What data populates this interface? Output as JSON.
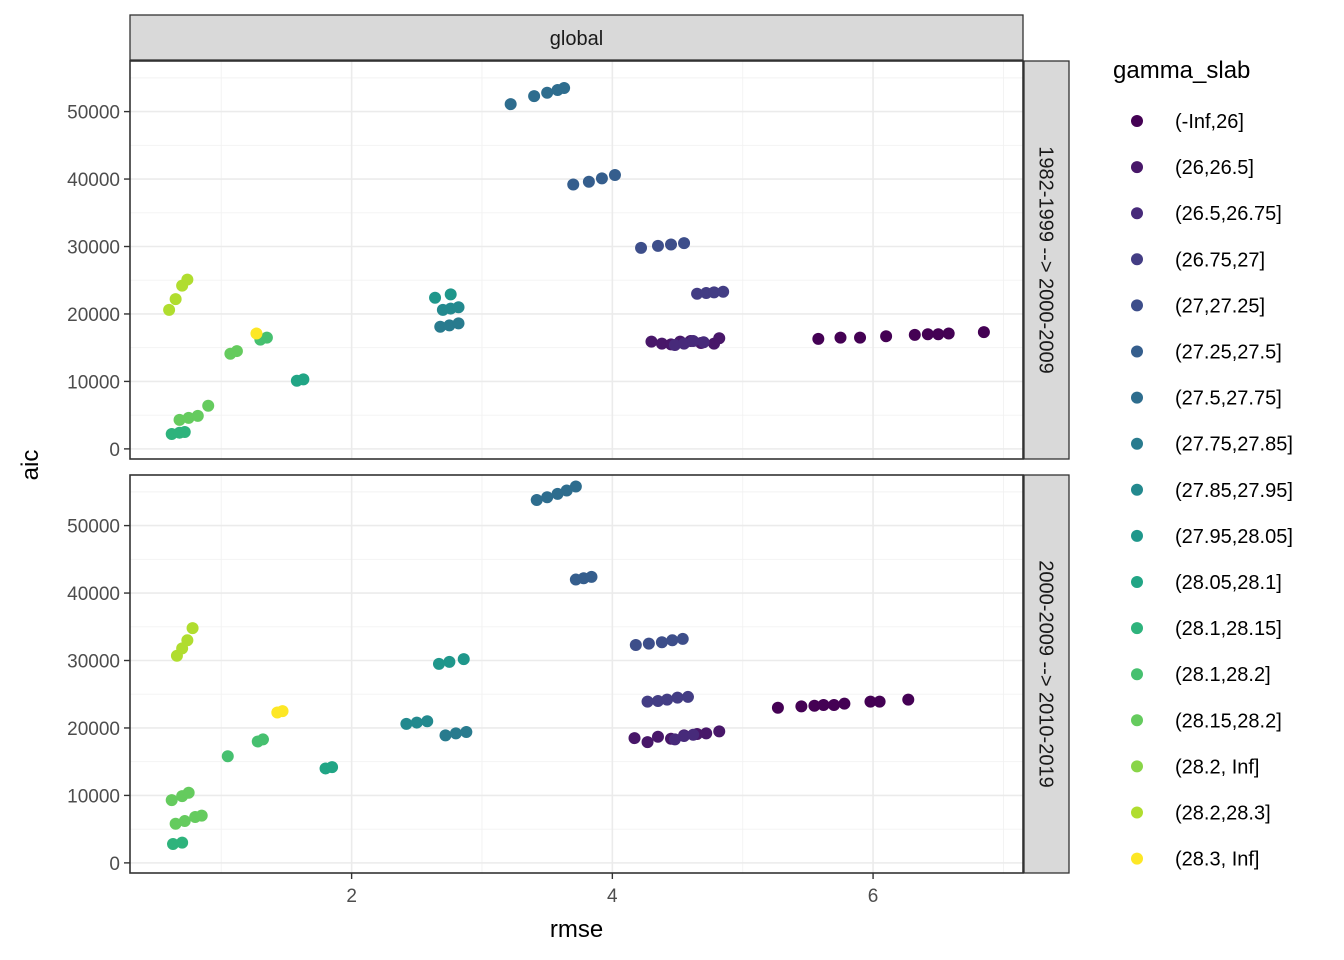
{
  "chart_data": {
    "type": "scatter",
    "facet_column_strip": "global",
    "xlabel": "rmse",
    "ylabel": "aic",
    "xlim": [
      0.3,
      7.15
    ],
    "ylim": [
      -1500,
      57500
    ],
    "x_ticks": [
      2,
      4,
      6
    ],
    "y_ticks": [
      0,
      10000,
      20000,
      30000,
      40000,
      50000
    ],
    "grid": true,
    "legend": {
      "title": "gamma_slab",
      "position": "right",
      "entries": [
        {
          "label": "(-Inf,26]",
          "color": "#440154"
        },
        {
          "label": "(26,26.5]",
          "color": "#481769"
        },
        {
          "label": "(26.5,26.75]",
          "color": "#472A7A"
        },
        {
          "label": "(26.75,27]",
          "color": "#433D84"
        },
        {
          "label": "(27,27.25]",
          "color": "#3D4E8A"
        },
        {
          "label": "(27.25,27.5]",
          "color": "#355E8D"
        },
        {
          "label": "(27.5,27.75]",
          "color": "#2E6D8E"
        },
        {
          "label": "(27.75,27.85]",
          "color": "#297B8E"
        },
        {
          "label": "(27.85,27.95]",
          "color": "#23898E"
        },
        {
          "label": "(27.95,28.05]",
          "color": "#1F978B"
        },
        {
          "label": "(28.05,28.1]",
          "color": "#21A585"
        },
        {
          "label": "(28.1,28.15]",
          "color": "#2EB37C"
        },
        {
          "label": "(28.1,28.2]",
          "color": "#46C06F"
        },
        {
          "label": "(28.15,28.2]",
          "color": "#65CB5E"
        },
        {
          "label": "(28.2, Inf]",
          "color": "#89D548"
        },
        {
          "label": "(28.2,28.3]",
          "color": "#B0DD2F"
        },
        {
          "label": "(28.3, Inf]",
          "color": "#FDE725"
        }
      ]
    },
    "panels": [
      {
        "strip": "1982-1999 --> 2000-2009",
        "series": [
          {
            "group": "(-Inf,26]",
            "x": [
              5.58,
              5.75,
              5.9,
              6.1,
              6.32,
              6.42,
              6.5,
              6.58,
              6.85
            ],
            "y": [
              16300,
              16500,
              16500,
              16700,
              16900,
              17000,
              17000,
              17100,
              17300
            ]
          },
          {
            "group": "(26,26.5]",
            "x": [
              4.3,
              4.38,
              4.45,
              4.52,
              4.6,
              4.68,
              4.78,
              4.82
            ],
            "y": [
              15900,
              15600,
              15500,
              15900,
              16000,
              15700,
              15600,
              16400
            ]
          },
          {
            "group": "(26.5,26.75]",
            "x": [
              4.48,
              4.55,
              4.62,
              4.7
            ],
            "y": [
              15400,
              15600,
              16000,
              15800
            ]
          },
          {
            "group": "(26.75,27]",
            "x": [
              4.65,
              4.72,
              4.78,
              4.85
            ],
            "y": [
              23000,
              23100,
              23200,
              23300
            ]
          },
          {
            "group": "(27,27.25]",
            "x": [
              4.22,
              4.35,
              4.45,
              4.55
            ],
            "y": [
              29800,
              30100,
              30300,
              30500
            ]
          },
          {
            "group": "(27.25,27.5]",
            "x": [
              3.7,
              3.82,
              3.92,
              4.02
            ],
            "y": [
              39200,
              39600,
              40100,
              40600
            ]
          },
          {
            "group": "(27.5,27.75]",
            "x": [
              3.22,
              3.4,
              3.5,
              3.58,
              3.63
            ],
            "y": [
              51100,
              52300,
              52800,
              53200,
              53500
            ]
          },
          {
            "group": "(27.75,27.85]",
            "x": [
              2.68,
              2.75,
              2.82
            ],
            "y": [
              18100,
              18300,
              18600
            ]
          },
          {
            "group": "(27.85,27.95]",
            "x": [
              2.7,
              2.76,
              2.82
            ],
            "y": [
              20600,
              20800,
              21000
            ]
          },
          {
            "group": "(27.95,28.05]",
            "x": [
              2.64,
              2.76
            ],
            "y": [
              22400,
              22900
            ]
          },
          {
            "group": "(28.05,28.1]",
            "x": [
              1.58,
              1.63
            ],
            "y": [
              10100,
              10300
            ]
          },
          {
            "group": "(28.1,28.15]",
            "x": [
              0.62,
              0.68,
              0.72
            ],
            "y": [
              2200,
              2400,
              2500
            ]
          },
          {
            "group": "(28.1,28.2]",
            "x": [
              1.3,
              1.35
            ],
            "y": [
              16200,
              16500
            ]
          },
          {
            "group": "(28.15,28.2]",
            "x": [
              0.68,
              0.75,
              0.82,
              0.9,
              1.07,
              1.12
            ],
            "y": [
              4300,
              4600,
              4900,
              6400,
              14100,
              14500
            ]
          },
          {
            "group": "(28.2,28.3]",
            "x": [
              0.6,
              0.65,
              0.7,
              0.74
            ],
            "y": [
              20600,
              22200,
              24200,
              25100
            ]
          },
          {
            "group": "(28.3, Inf]",
            "x": [
              1.27
            ],
            "y": [
              17100
            ]
          }
        ]
      },
      {
        "strip": "2000-2009 --> 2010-2019",
        "series": [
          {
            "group": "(-Inf,26]",
            "x": [
              5.27,
              5.45,
              5.55,
              5.62,
              5.7,
              5.78,
              5.98,
              6.05,
              6.27
            ],
            "y": [
              23000,
              23200,
              23300,
              23400,
              23400,
              23600,
              23900,
              23900,
              24200
            ]
          },
          {
            "group": "(26,26.5]",
            "x": [
              4.17,
              4.27,
              4.35,
              4.45,
              4.55,
              4.65,
              4.72,
              4.82
            ],
            "y": [
              18500,
              17900,
              18700,
              18400,
              18900,
              19100,
              19200,
              19500
            ]
          },
          {
            "group": "(26.5,26.75]",
            "x": [
              4.48,
              4.55,
              4.62
            ],
            "y": [
              18300,
              18800,
              19000
            ]
          },
          {
            "group": "(26.75,27]",
            "x": [
              4.27,
              4.35,
              4.42,
              4.5,
              4.58
            ],
            "y": [
              23900,
              24000,
              24200,
              24500,
              24600
            ]
          },
          {
            "group": "(27,27.25]",
            "x": [
              4.18,
              4.28,
              4.38,
              4.46,
              4.54
            ],
            "y": [
              32300,
              32500,
              32700,
              33000,
              33200
            ]
          },
          {
            "group": "(27.25,27.5]",
            "x": [
              3.72,
              3.78,
              3.84
            ],
            "y": [
              42000,
              42200,
              42400
            ]
          },
          {
            "group": "(27.5,27.75]",
            "x": [
              3.42,
              3.5,
              3.58,
              3.65,
              3.72
            ],
            "y": [
              53800,
              54200,
              54700,
              55200,
              55800
            ]
          },
          {
            "group": "(27.75,27.85]",
            "x": [
              2.72,
              2.8,
              2.88
            ],
            "y": [
              18900,
              19200,
              19400
            ]
          },
          {
            "group": "(27.85,27.95]",
            "x": [
              2.42,
              2.5,
              2.58
            ],
            "y": [
              20600,
              20800,
              21000
            ]
          },
          {
            "group": "(27.95,28.05]",
            "x": [
              2.67,
              2.75,
              2.86
            ],
            "y": [
              29500,
              29800,
              30200
            ]
          },
          {
            "group": "(28.05,28.1]",
            "x": [
              1.8,
              1.85
            ],
            "y": [
              14000,
              14200
            ]
          },
          {
            "group": "(28.1,28.15]",
            "x": [
              0.63,
              0.7
            ],
            "y": [
              2800,
              3000
            ]
          },
          {
            "group": "(28.1,28.2]",
            "x": [
              1.05,
              1.28,
              1.32
            ],
            "y": [
              15800,
              18000,
              18300
            ]
          },
          {
            "group": "(28.15,28.2]",
            "x": [
              0.65,
              0.72,
              0.8,
              0.85,
              0.62,
              0.7,
              0.75
            ],
            "y": [
              5800,
              6200,
              6800,
              7000,
              9300,
              9900,
              10400
            ]
          },
          {
            "group": "(28.2,28.3]",
            "x": [
              0.66,
              0.7,
              0.74,
              0.78
            ],
            "y": [
              30700,
              31800,
              33000,
              34800
            ]
          },
          {
            "group": "(28.3, Inf]",
            "x": [
              1.43,
              1.47
            ],
            "y": [
              22300,
              22500
            ]
          }
        ]
      }
    ]
  }
}
